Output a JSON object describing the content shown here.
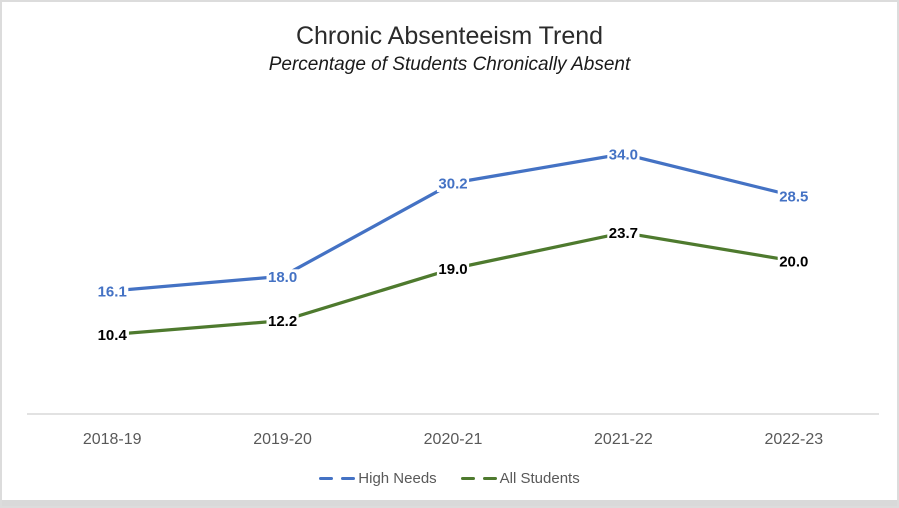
{
  "chart_data": {
    "type": "line",
    "title": "Chronic Absenteeism Trend",
    "subtitle": "Percentage of Students Chronically Absent",
    "categories": [
      "2018-19",
      "2019-20",
      "2020-21",
      "2021-22",
      "2022-23"
    ],
    "series": [
      {
        "name": "High Needs",
        "color": "#4472C4",
        "label_color": "#4472C4",
        "values": [
          16.1,
          18.0,
          30.2,
          34.0,
          28.5
        ]
      },
      {
        "name": "All Students",
        "color": "#4E7A2E",
        "label_color": "#000000",
        "values": [
          10.4,
          12.2,
          19.0,
          23.7,
          20.0
        ]
      }
    ],
    "ylim": [
      0,
      40
    ],
    "grid": false,
    "legend_position": "bottom",
    "axis_color": "#D9D9D9",
    "tick_color": "#595959",
    "data_labels": "on",
    "line_style": "solid",
    "legend_marker_style": "dashed"
  }
}
